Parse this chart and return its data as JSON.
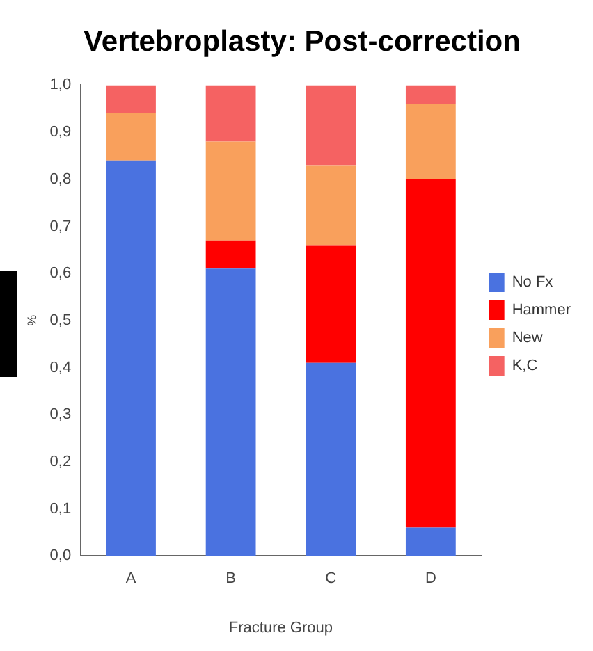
{
  "chart_data": {
    "type": "bar",
    "title": "Vertebroplasty: Post-correction",
    "xlabel": "Fracture Group",
    "ylabel": "%",
    "categories": [
      "A",
      "B",
      "C",
      "D"
    ],
    "stacked": true,
    "series": [
      {
        "name": "No Fx",
        "color": "#4a72e0",
        "values": [
          0.84,
          0.61,
          0.41,
          0.06
        ]
      },
      {
        "name": "Hammer",
        "color": "#ff0000",
        "values": [
          0,
          0.06,
          0.25,
          0.74
        ]
      },
      {
        "name": "New",
        "color": "#f9a05c",
        "values": [
          0.1,
          0.21,
          0.17,
          0.16
        ]
      },
      {
        "name": "K,C",
        "color": "#f56262",
        "values": [
          0.06,
          0.12,
          0.17,
          0.04
        ]
      }
    ],
    "ylim": [
      0,
      1
    ],
    "yticks": [
      {
        "value": 0,
        "label": "0,0"
      },
      {
        "value": 0.1,
        "label": "0,1"
      },
      {
        "value": 0.2,
        "label": "0,2"
      },
      {
        "value": 0.3,
        "label": "0,3"
      },
      {
        "value": 0.4,
        "label": "0,4"
      },
      {
        "value": 0.5,
        "label": "0,5"
      },
      {
        "value": 0.6,
        "label": "0,6"
      },
      {
        "value": 0.7,
        "label": "0,7"
      },
      {
        "value": 0.8,
        "label": "0,8"
      },
      {
        "value": 0.9,
        "label": "0,9"
      },
      {
        "value": 1,
        "label": "1,0"
      }
    ],
    "grid": false,
    "legend": "right"
  }
}
